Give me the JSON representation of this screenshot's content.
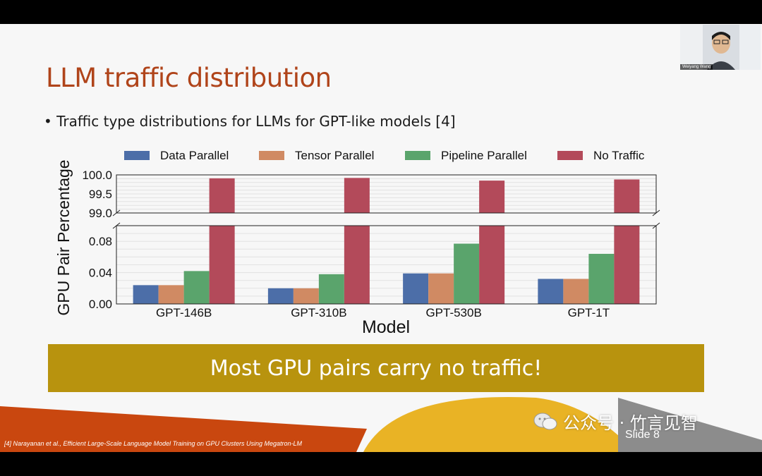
{
  "slide": {
    "title": "LLM traffic distribution",
    "bullet": "• Traffic type distributions for LLMs for GPT-like models [4]",
    "banner": "Most GPU pairs carry no traffic!",
    "footnote": "[4] Narayanan et al., Efficient Large-Scale Language Model Training on GPU Clusters Using Megatron-LM",
    "slide_number": "Slide 8"
  },
  "watermark": {
    "text": "公众号 · 竹言见智",
    "icon": "wechat-icon"
  },
  "webcam": {
    "name": "Weiyang Wang"
  },
  "colors": {
    "title": "#b0441a",
    "banner": "#b8930e",
    "data_parallel": "#4c6ea8",
    "tensor_parallel": "#d08a63",
    "pipeline_parallel": "#5aa46c",
    "no_traffic": "#b34a5a"
  },
  "chart_data": {
    "type": "bar",
    "categories": [
      "GPT-146B",
      "GPT-310B",
      "GPT-530B",
      "GPT-1T"
    ],
    "series": [
      {
        "name": "Data Parallel",
        "values": [
          0.024,
          0.02,
          0.039,
          0.032
        ]
      },
      {
        "name": "Tensor Parallel",
        "values": [
          0.024,
          0.02,
          0.039,
          0.032
        ]
      },
      {
        "name": "Pipeline Parallel",
        "values": [
          0.042,
          0.038,
          0.077,
          0.064
        ]
      },
      {
        "name": "No Traffic",
        "values": [
          99.91,
          99.92,
          99.85,
          99.88
        ]
      }
    ],
    "xlabel": "Model",
    "ylabel": "GPU Pair Percentage",
    "broken_axis": true,
    "upper_ylim": [
      99.0,
      100.0
    ],
    "upper_ticks": [
      "100.0",
      "99.5",
      "99.0"
    ],
    "lower_ylim": [
      0,
      0.1
    ],
    "lower_ticks": [
      "0.08",
      "0.04",
      "0.00"
    ],
    "legend": "top"
  }
}
